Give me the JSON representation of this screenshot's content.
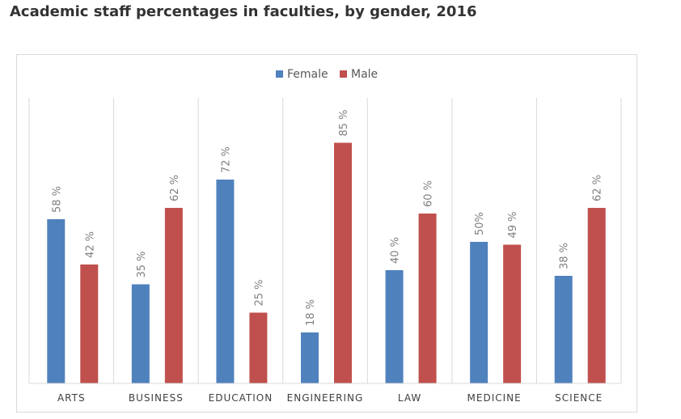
{
  "page": {
    "title": "Academic staff percentages in faculties, by gender, 2016"
  },
  "chart_data": {
    "type": "bar",
    "title": "Academic staff percentages in faculties, by gender, 2016",
    "categories": [
      "ARTS",
      "BUSINESS",
      "EDUCATION",
      "ENGINEERING",
      "LAW",
      "MEDICINE",
      "SCIENCE"
    ],
    "series": [
      {
        "name": "Female",
        "color": "#4f81bd",
        "values": [
          58,
          35,
          72,
          18,
          40,
          50,
          38
        ],
        "labels": [
          "58 %",
          "35 %",
          "72 %",
          "18 %",
          "40 %",
          "50%",
          "38 %"
        ]
      },
      {
        "name": "Male",
        "color": "#c0504d",
        "values": [
          42,
          62,
          25,
          85,
          60,
          49,
          62
        ],
        "labels": [
          "42 %",
          "62 %",
          "25 %",
          "85 %",
          "60 %",
          "49 %",
          "62 %"
        ]
      }
    ],
    "ylim": [
      0,
      100
    ],
    "xlabel": "",
    "ylabel": "",
    "legend_position": "top-center",
    "grid": false,
    "category_separators": true
  }
}
